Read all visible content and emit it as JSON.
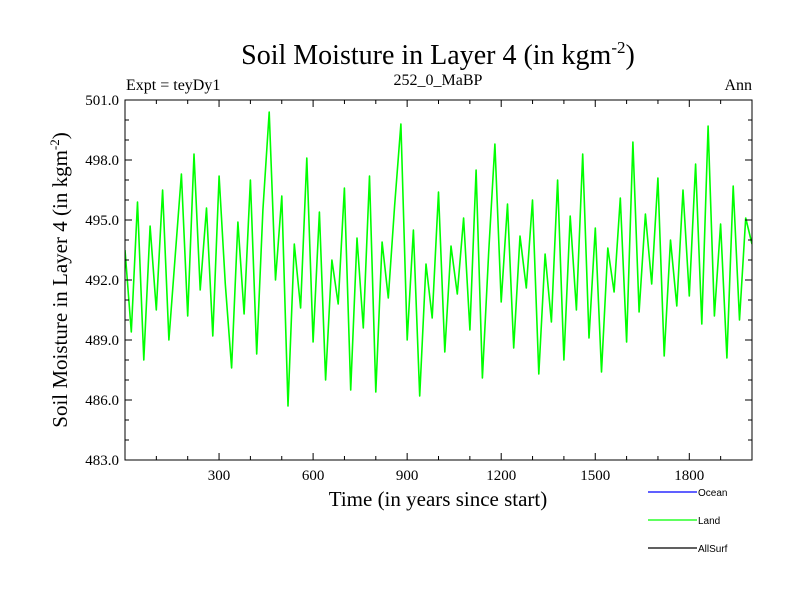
{
  "chart_data": {
    "type": "line",
    "title": "Soil Moisture in Layer 4 (in kgm",
    "title_sup": "-2",
    "title_end": ")",
    "subtitle_left": "Expt = teyDy1",
    "subtitle_center": "252_0_MaBP",
    "subtitle_right": "Ann",
    "xlabel": "Time (in years since start)",
    "ylabel": "Soil Moisture in Layer 4 (in kgm",
    "ylabel_sup": "-2",
    "ylabel_end": ")",
    "xlim": [
      0,
      2000
    ],
    "ylim": [
      483.0,
      501.0
    ],
    "x_ticks": [
      300,
      600,
      900,
      1200,
      1500,
      1800
    ],
    "x_tick_labels": [
      "300",
      "600",
      "900",
      "1200",
      "1500",
      "1800"
    ],
    "y_ticks": [
      483.0,
      486.0,
      489.0,
      492.0,
      495.0,
      498.0,
      501.0
    ],
    "y_tick_labels": [
      "483.0",
      "486.0",
      "489.0",
      "492.0",
      "495.0",
      "498.0",
      "501.0"
    ],
    "legend": [
      {
        "name": "Ocean",
        "color": "#0000ff"
      },
      {
        "name": "Land",
        "color": "#00ff00"
      },
      {
        "name": "AllSurf",
        "color": "#000000"
      }
    ],
    "series": [
      {
        "name": "Land",
        "color": "#00ff00",
        "description": "Annual-mean values fluctuating around ~492.5 kg m-2, range ~485.7 to ~500.4",
        "x": [
          0,
          20,
          40,
          60,
          80,
          100,
          120,
          140,
          160,
          180,
          200,
          220,
          240,
          260,
          280,
          300,
          320,
          340,
          360,
          380,
          400,
          420,
          440,
          460,
          480,
          500,
          520,
          540,
          560,
          580,
          600,
          620,
          640,
          660,
          680,
          700,
          720,
          740,
          760,
          780,
          800,
          820,
          840,
          860,
          880,
          900,
          920,
          940,
          960,
          980,
          1000,
          1020,
          1040,
          1060,
          1080,
          1100,
          1120,
          1140,
          1160,
          1180,
          1200,
          1220,
          1240,
          1260,
          1280,
          1300,
          1320,
          1340,
          1360,
          1380,
          1400,
          1420,
          1440,
          1460,
          1480,
          1500,
          1520,
          1540,
          1560,
          1580,
          1600,
          1620,
          1640,
          1660,
          1680,
          1700,
          1720,
          1740,
          1760,
          1780,
          1800,
          1820,
          1840,
          1860,
          1880,
          1900,
          1920,
          1940,
          1960,
          1980,
          2000
        ],
        "values": [
          493.5,
          489.4,
          495.9,
          488.0,
          494.7,
          490.5,
          496.5,
          489.0,
          493.2,
          497.3,
          490.2,
          498.3,
          491.5,
          495.6,
          489.2,
          497.2,
          491.8,
          487.6,
          494.9,
          490.3,
          497.0,
          488.3,
          495.5,
          500.4,
          492.0,
          496.2,
          485.7,
          493.8,
          490.6,
          498.1,
          488.9,
          495.4,
          487.0,
          493.0,
          490.8,
          496.6,
          486.5,
          494.1,
          489.6,
          497.2,
          486.4,
          493.9,
          491.1,
          495.7,
          499.8,
          489.0,
          494.5,
          486.2,
          492.8,
          490.1,
          496.4,
          488.4,
          493.7,
          491.3,
          495.1,
          489.5,
          497.5,
          487.1,
          493.4,
          498.8,
          490.9,
          495.8,
          488.6,
          494.2,
          491.6,
          496.0,
          487.3,
          493.3,
          489.9,
          497.0,
          488.0,
          495.2,
          490.5,
          498.3,
          489.1,
          494.6,
          487.4,
          493.6,
          491.4,
          496.1,
          488.9,
          498.9,
          490.4,
          495.3,
          491.8,
          497.1,
          488.2,
          494.0,
          490.7,
          496.5,
          491.2,
          497.8,
          489.8,
          499.7,
          490.2,
          494.8,
          488.1,
          496.7,
          490.0,
          495.1,
          493.8
        ]
      }
    ]
  }
}
